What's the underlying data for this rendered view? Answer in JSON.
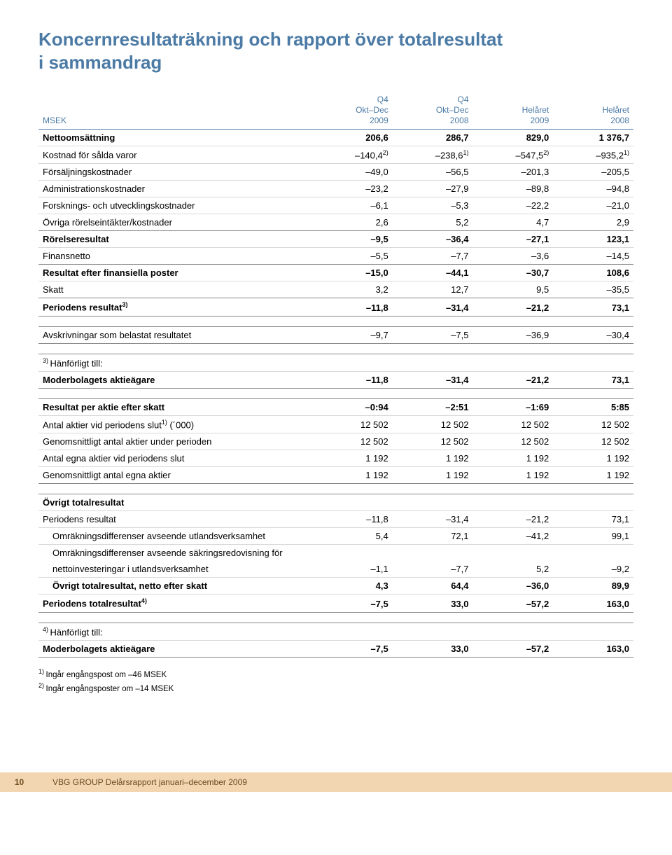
{
  "title_line1": "Koncernresultaträkning och rapport över totalresultat",
  "title_line2": "i sammandrag",
  "columns": {
    "c0": "MSEK",
    "c1a": "Q4",
    "c1b": "Okt–Dec",
    "c1c": "2009",
    "c2a": "Q4",
    "c2b": "Okt–Dec",
    "c2c": "2008",
    "c3a": "Helåret",
    "c3b": "2009",
    "c4a": "Helåret",
    "c4b": "2008"
  },
  "rows": {
    "netto": {
      "label": "Nettoomsättning",
      "v": [
        "206,6",
        "286,7",
        "829,0",
        "1 376,7"
      ],
      "bold": true
    },
    "kostnad": {
      "label": "Kostnad för sålda varor",
      "sup": "",
      "v": [
        "–140,4",
        "–238,6",
        "–547,5",
        "–935,2"
      ],
      "sups": [
        "2)",
        "1)",
        "2)",
        "1)"
      ]
    },
    "forsalj": {
      "label": "Försäljningskostnader",
      "v": [
        "–49,0",
        "–56,5",
        "–201,3",
        "–205,5"
      ]
    },
    "admin": {
      "label": "Administrationskostnader",
      "v": [
        "–23,2",
        "–27,9",
        "–89,8",
        "–94,8"
      ]
    },
    "forsk": {
      "label": "Forsknings- och utvecklingskostnader",
      "v": [
        "–6,1",
        "–5,3",
        "–22,2",
        "–21,0"
      ]
    },
    "ovrint": {
      "label": "Övriga rörelseintäkter/kostnader",
      "v": [
        "2,6",
        "5,2",
        "4,7",
        "2,9"
      ]
    },
    "rorelse": {
      "label": "Rörelseresultat",
      "v": [
        "–9,5",
        "–36,4",
        "–27,1",
        "123,1"
      ],
      "bold": true
    },
    "finans": {
      "label": "Finansnetto",
      "v": [
        "–5,5",
        "–7,7",
        "–3,6",
        "–14,5"
      ]
    },
    "reseft": {
      "label": "Resultat efter finansiella poster",
      "v": [
        "–15,0",
        "–44,1",
        "–30,7",
        "108,6"
      ],
      "bold": true
    },
    "skatt": {
      "label": "Skatt",
      "v": [
        "3,2",
        "12,7",
        "9,5",
        "–35,5"
      ]
    },
    "periodres": {
      "label": "Periodens resultat",
      "sup": "3)",
      "v": [
        "–11,8",
        "–31,4",
        "–21,2",
        "73,1"
      ],
      "bold": true
    },
    "avskr": {
      "label": "Avskrivningar som belastat resultatet",
      "v": [
        "–9,7",
        "–7,5",
        "–36,9",
        "–30,4"
      ]
    },
    "hanf3": {
      "label": "Hänförligt till:",
      "pre": "3) "
    },
    "moder1": {
      "label": "Moderbolagets aktieägare",
      "v": [
        "–11,8",
        "–31,4",
        "–21,2",
        "73,1"
      ],
      "bold": true
    },
    "resakt": {
      "label": "Resultat per aktie efter skatt",
      "v": [
        "–0:94",
        "–2:51",
        "–1:69",
        "5:85"
      ],
      "bold": true
    },
    "antal1": {
      "label": "Antal aktier vid periodens slut",
      "sup": "1)",
      "post": " (´000)",
      "v": [
        "12 502",
        "12 502",
        "12 502",
        "12 502"
      ]
    },
    "genom1": {
      "label": "Genomsnittligt antal aktier under perioden",
      "v": [
        "12 502",
        "12 502",
        "12 502",
        "12 502"
      ]
    },
    "egna": {
      "label": "Antal egna aktier vid periodens slut",
      "v": [
        "1 192",
        "1 192",
        "1 192",
        "1 192"
      ]
    },
    "genom2": {
      "label": "Genomsnittligt antal egna aktier",
      "v": [
        "1 192",
        "1 192",
        "1 192",
        "1 192"
      ]
    },
    "ovrtot": {
      "label": "Övrigt totalresultat",
      "bold": true
    },
    "periodres2": {
      "label": "Periodens resultat",
      "v": [
        "–11,8",
        "–31,4",
        "–21,2",
        "73,1"
      ]
    },
    "omr1": {
      "label": "Omräkningsdifferenser avseende utlandsverksamhet",
      "v": [
        "5,4",
        "72,1",
        "–41,2",
        "99,1"
      ],
      "indent": true
    },
    "omr2a": {
      "label": "Omräkningsdifferenser avseende säkringsredovisning för",
      "indent": true,
      "noborder": true
    },
    "omr2b": {
      "label": "nettoinvesteringar i utlandsverksamhet",
      "v": [
        "–1,1",
        "–7,7",
        "5,2",
        "–9,2"
      ],
      "indent": true
    },
    "ovrtotnet": {
      "label": "Övrigt totalresultat, netto efter skatt",
      "v": [
        "4,3",
        "64,4",
        "–36,0",
        "89,9"
      ],
      "bold": true,
      "indent": true
    },
    "pertot": {
      "label": "Periodens totalresultat",
      "sup": "4)",
      "v": [
        "–7,5",
        "33,0",
        "–57,2",
        "163,0"
      ],
      "bold": true
    },
    "hanf4": {
      "label": "Hänförligt till:",
      "pre": "4) "
    },
    "moder2": {
      "label": "Moderbolagets aktieägare",
      "v": [
        "–7,5",
        "33,0",
        "–57,2",
        "163,0"
      ],
      "bold": true
    }
  },
  "footnotes": {
    "f1": "Ingår engångspost om –46 MSEK",
    "f1pre": "1) ",
    "f2": "Ingår engångsposter om –14 MSEK",
    "f2pre": "2) "
  },
  "footer": {
    "page": "10",
    "text": "VBG GROUP Delårsrapport januari–december 2009"
  },
  "style": {
    "heading_color": "#4b7aa5",
    "footer_bg": "#f2d6b1",
    "footer_color": "#6b4a1f"
  }
}
